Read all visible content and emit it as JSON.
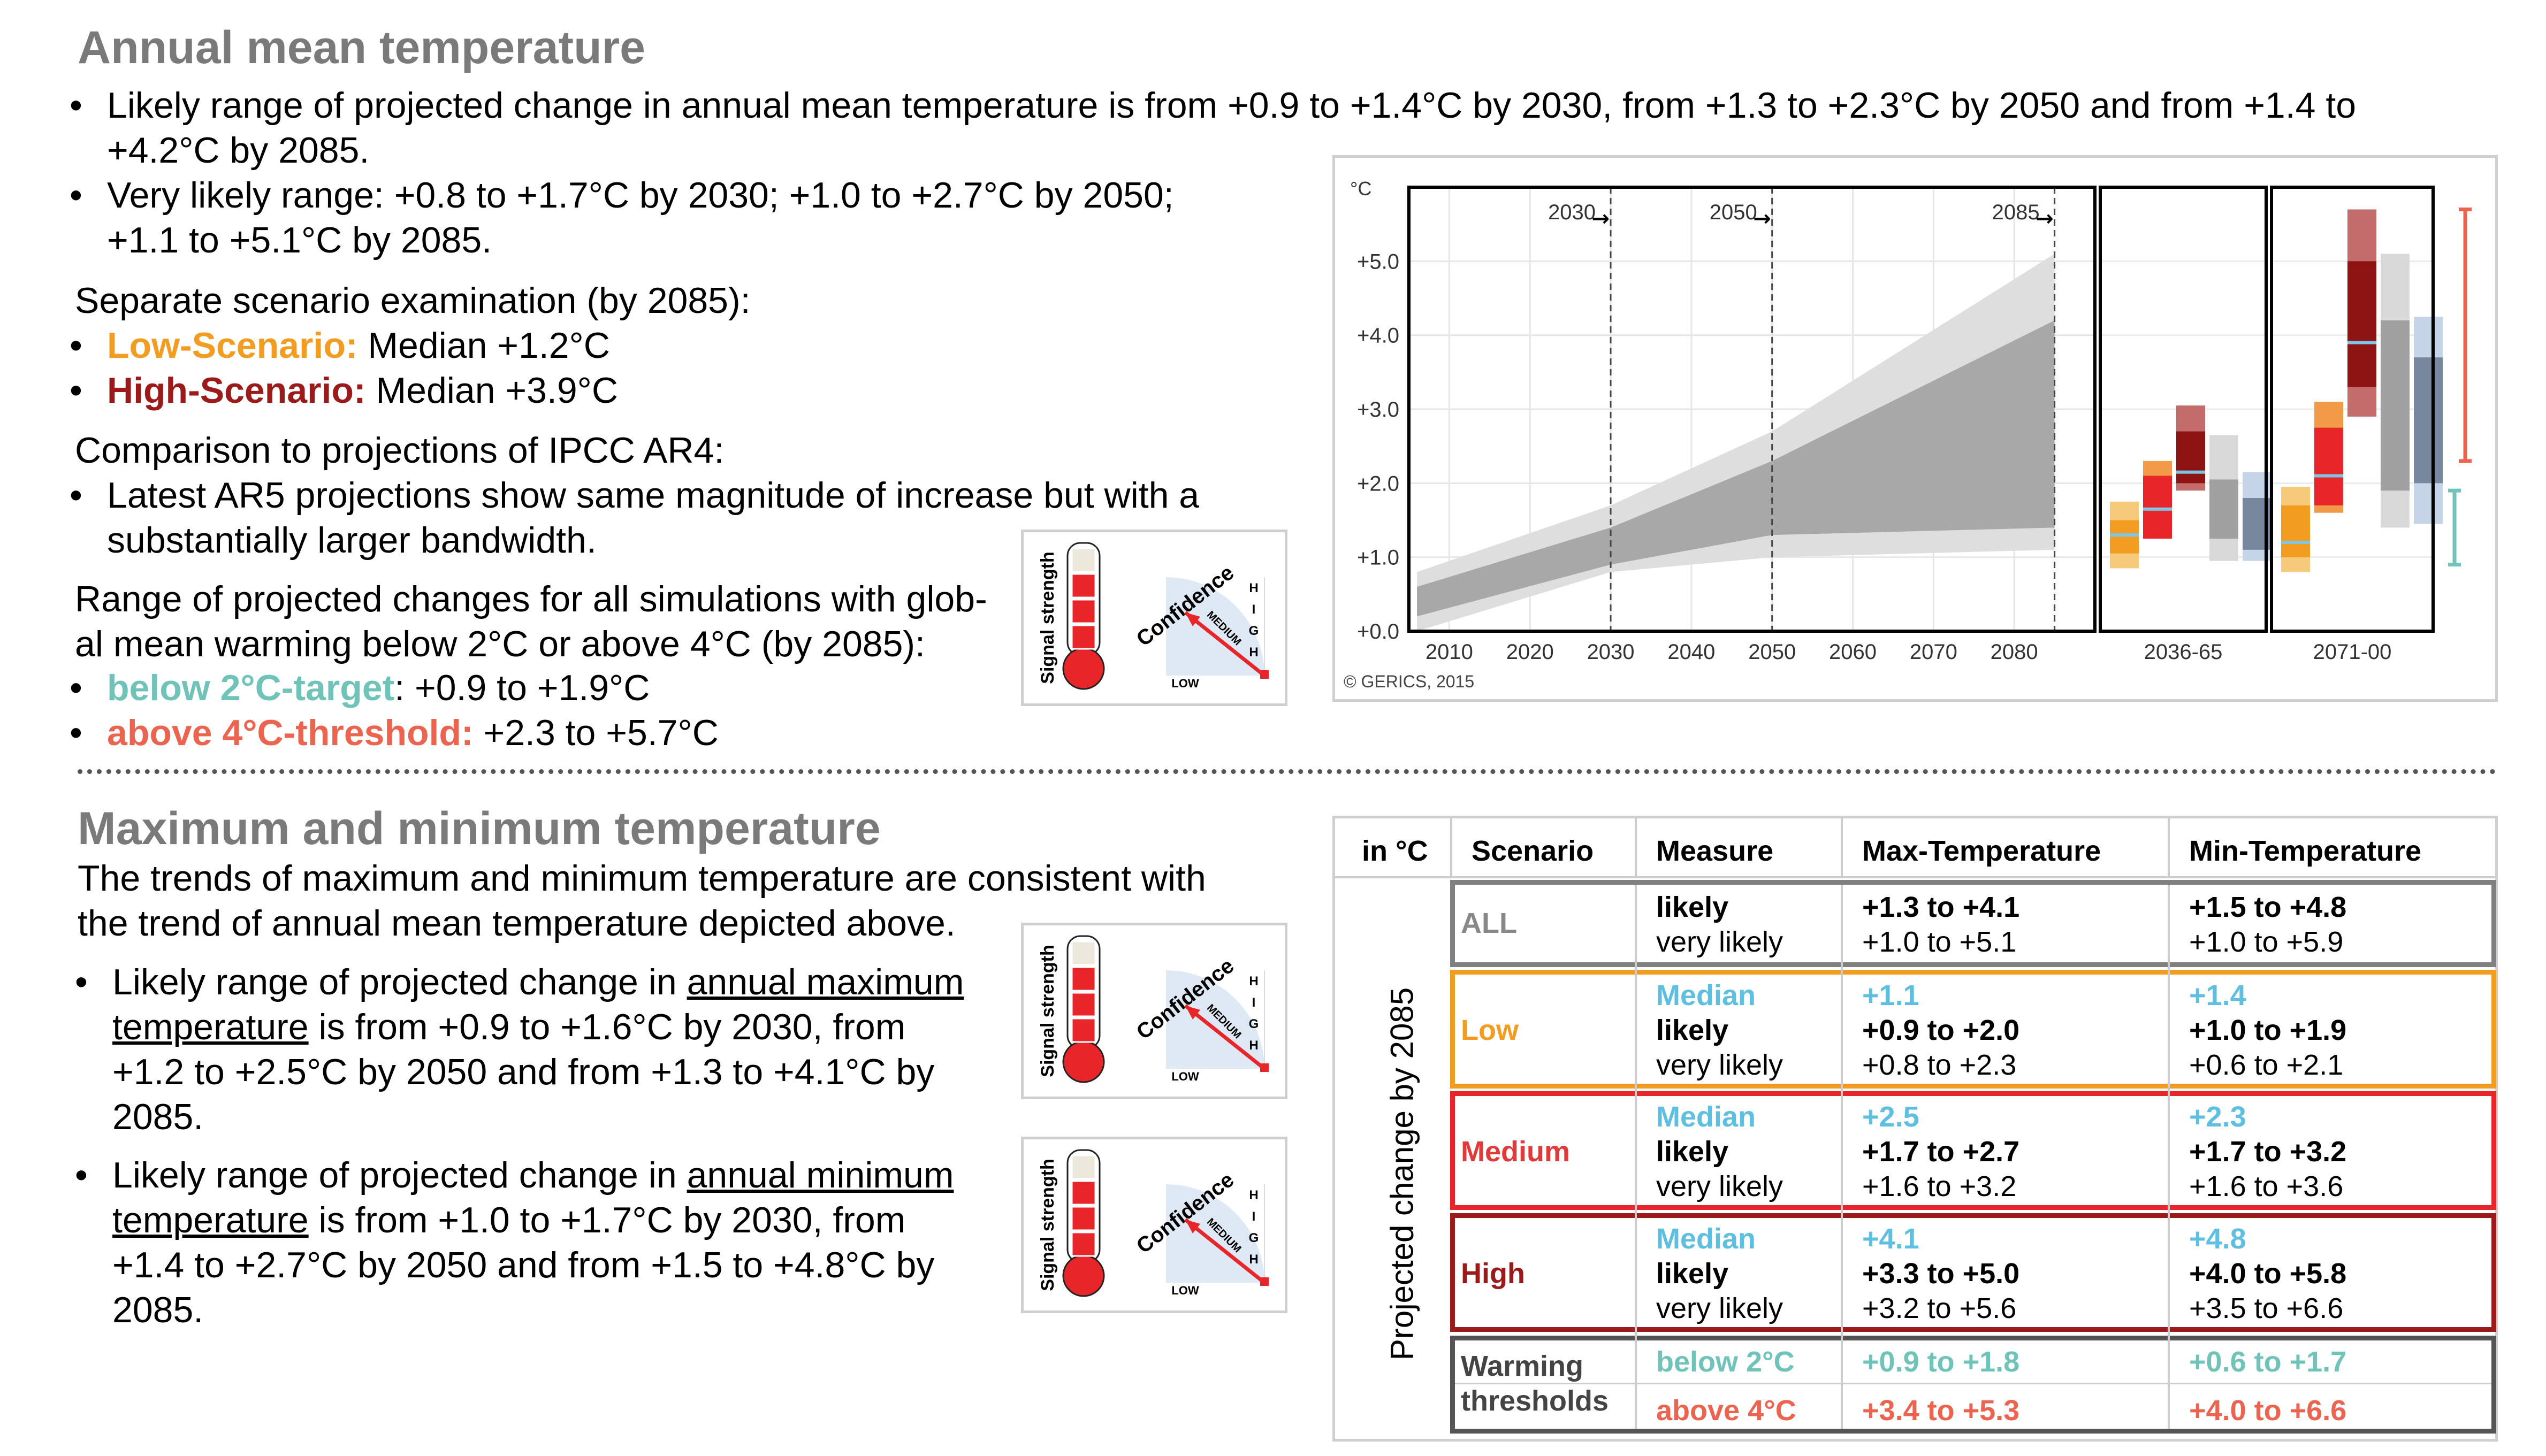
{
  "top": {
    "title": "Annual mean temperature",
    "b1_a": "Likely range of projected change in annual mean temperature is from +0.9 to +1.4°C by 2030, from +1.3 to +2.3°C by 2050 and from +1.4 to",
    "b1_b": "+4.2°C by 2085.",
    "b2_a": "Very likely range: +0.8 to +1.7°C by 2030; +1.0 to +2.7°C by 2050;",
    "b2_b": "+1.1 to +5.1°C by 2085.",
    "sep_heading": "Separate scenario examination (by 2085):",
    "low_label": "Low-Scenario:",
    "low_value": " Median +1.2°C",
    "high_label": "High-Scenario:",
    "high_value": " Median +3.9°C",
    "cmp_heading": "Comparison to projections of IPCC AR4:",
    "cmp_a": "Latest AR5 projections show same magnitude of increase but with a",
    "cmp_b": "substantially larger bandwidth.",
    "range_a": "Range of projected changes for all simulations with glob-",
    "range_b": "al mean warming below 2°C or above 4°C (by 2085):",
    "below_label": "below 2°C-target",
    "below_value": ": +0.9 to +1.9°C",
    "above_label": "above 4°C-threshold:",
    "above_value": " +2.3 to +5.7°C"
  },
  "bottom": {
    "title": "Maximum and minimum temperature",
    "intro_a": "The trends of maximum and minimum temperature are consistent with",
    "intro_b": "the trend of annual mean temperature depicted above.",
    "max_1a": "Likely range of projected change in ",
    "max_1u": "annual maximum",
    "max_2u": "temperature",
    "max_2b": " is from +0.9 to +1.6°C by 2030, from",
    "max_3": "+1.2 to +2.5°C by 2050 and from +1.3 to +4.1°C by",
    "max_4": "2085.",
    "min_1a": "Likely range of projected change in ",
    "min_1u": "annual minimum",
    "min_2u": "temperature",
    "min_2b": " is from +1.0 to +1.7°C by 2030, from",
    "min_3": "+1.4 to +2.7°C by 2050 and from +1.5 to +4.8°C by",
    "min_4": "2085."
  },
  "badge": {
    "signal": "Signal strength",
    "confidence": "Confidence",
    "high_letters": [
      "H",
      "I",
      "G",
      "H"
    ],
    "medium": "MEDIUM",
    "low": "LOW",
    "colors": {
      "red": "#e8262a",
      "empty": "#ece8dc",
      "dial": "#dfe9f5"
    }
  },
  "chart_data": {
    "type": "area",
    "ylabel": "°C",
    "yticks": [
      "+0.0",
      "+1.0",
      "+2.0",
      "+3.0",
      "+4.0",
      "+5.0"
    ],
    "ylim": [
      0,
      6
    ],
    "xticks": [
      "2010",
      "2020",
      "2030",
      "2040",
      "2050",
      "2060",
      "2070",
      "2080"
    ],
    "xlim": [
      2005,
      2090
    ],
    "markers": [
      "2030",
      "2050",
      "2085"
    ],
    "copyright": "© GERICS, 2015",
    "very_likely_band": {
      "x": [
        2006,
        2030,
        2050,
        2085
      ],
      "lower": [
        0.0,
        0.8,
        1.0,
        1.1
      ],
      "upper": [
        0.8,
        1.7,
        2.7,
        5.1
      ]
    },
    "likely_band": {
      "x": [
        2006,
        2030,
        2050,
        2085
      ],
      "lower": [
        0.2,
        0.9,
        1.3,
        1.4
      ],
      "upper": [
        0.6,
        1.4,
        2.3,
        4.2
      ]
    },
    "panels": [
      {
        "label": "2036-65",
        "boxes": [
          {
            "scenario": "low",
            "outer": [
              0.85,
              1.75
            ],
            "inner": [
              1.05,
              1.5
            ],
            "median": 1.3
          },
          {
            "scenario": "medium",
            "outer": [
              1.55,
              2.3
            ],
            "inner": [
              1.25,
              2.1
            ],
            "median": 1.65
          },
          {
            "scenario": "high",
            "outer": [
              1.9,
              3.05
            ],
            "inner": [
              2.0,
              2.7
            ],
            "median": 2.15
          },
          {
            "scenario": "all",
            "outer": [
              0.95,
              2.65
            ],
            "inner": [
              1.25,
              2.05
            ],
            "median": null
          },
          {
            "scenario": "ar4",
            "outer": [
              0.95,
              2.15
            ],
            "inner": [
              1.1,
              1.8
            ],
            "median": null
          }
        ]
      },
      {
        "label": "2071-00",
        "boxes": [
          {
            "scenario": "low",
            "outer": [
              0.8,
              1.95
            ],
            "inner": [
              1.0,
              1.7
            ],
            "median": 1.2
          },
          {
            "scenario": "medium",
            "outer": [
              1.6,
              3.1
            ],
            "inner": [
              1.7,
              2.75
            ],
            "median": 2.1
          },
          {
            "scenario": "high",
            "outer": [
              2.9,
              5.7
            ],
            "inner": [
              3.3,
              5.0
            ],
            "median": 3.9
          },
          {
            "scenario": "all",
            "outer": [
              1.4,
              5.1
            ],
            "inner": [
              1.9,
              4.2
            ],
            "median": null
          },
          {
            "scenario": "ar4",
            "outer": [
              1.45,
              4.25
            ],
            "inner": [
              2.0,
              3.7
            ],
            "median": null
          }
        ]
      }
    ],
    "threshold_bars": [
      {
        "name": "above 4°C",
        "range": [
          2.3,
          5.7
        ],
        "color": "#ec6350"
      },
      {
        "name": "below 2°C",
        "range": [
          0.9,
          1.9
        ],
        "color": "#6fc3b9"
      }
    ],
    "colors": {
      "very_likely": "#dedede",
      "likely": "#a8a8a8",
      "low_outer": "#f7c97a",
      "low_inner": "#f39c22",
      "medium_outer": "#f29a48",
      "medium_inner": "#e8262a",
      "high_outer": "#c46b6b",
      "high_inner": "#8e1414",
      "all_outer": "#d9d9d9",
      "all_inner": "#a0a0a0",
      "ar4_outer": "#c6d4e8",
      "ar4_inner": "#77889e",
      "median": "#7cc6e8"
    }
  },
  "table": {
    "headers": [
      "in °C",
      "Scenario",
      "Measure",
      "Max-Temperature",
      "Min-Temperature"
    ],
    "side_label": "Projected change by 2085",
    "rows": {
      "all": {
        "scenario": "ALL",
        "m1": "likely",
        "m2": "very likely",
        "x1": "+1.3 to +4.1",
        "x2": "+1.0 to +5.1",
        "n1": "+1.5 to +4.8",
        "n2": "+1.0 to +5.9"
      },
      "low": {
        "scenario": "Low",
        "m0": "Median",
        "m1": "likely",
        "m2": "very likely",
        "x0": "+1.1",
        "x1": "+0.9 to +2.0",
        "x2": "+0.8 to +2.3",
        "n0": "+1.4",
        "n1": "+1.0 to +1.9",
        "n2": "+0.6 to +2.1"
      },
      "medium": {
        "scenario": "Medium",
        "m0": "Median",
        "m1": "likely",
        "m2": "very likely",
        "x0": "+2.5",
        "x1": "+1.7 to +2.7",
        "x2": "+1.6 to +3.2",
        "n0": "+2.3",
        "n1": "+1.7 to +3.2",
        "n2": "+1.6 to +3.6"
      },
      "high": {
        "scenario": "High",
        "m0": "Median",
        "m1": "likely",
        "m2": "very likely",
        "x0": "+4.1",
        "x1": "+3.3 to +5.0",
        "x2": "+3.2 to +5.6",
        "n0": "+4.8",
        "n1": "+4.0 to +5.8",
        "n2": "+3.5 to +6.6"
      },
      "thresholds": {
        "s1": "Warming",
        "s2": "thresholds",
        "m1": "below 2°C",
        "m2": "above 4°C",
        "x1": "+0.9 to +1.8",
        "x2": "+3.4 to +5.3",
        "n1": "+0.6 to +1.7",
        "n2": "+4.0 to +6.6"
      }
    }
  }
}
